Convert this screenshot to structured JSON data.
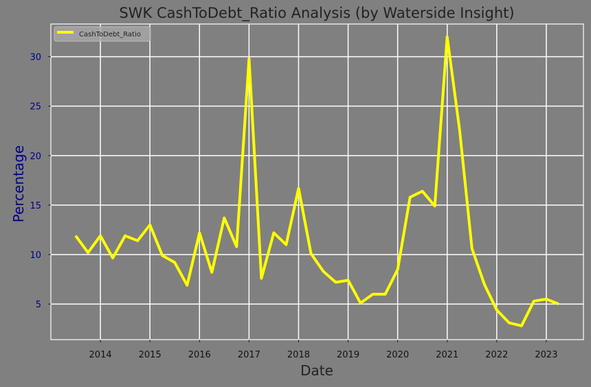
{
  "chart_data": {
    "type": "line",
    "title": "SWK CashToDebt_Ratio Analysis (by Waterside Insight)",
    "xlabel": "Date",
    "ylabel": "Percentage",
    "xlim": [
      2013.0,
      2023.75
    ],
    "ylim": [
      1.4,
      33.3
    ],
    "x_ticks": [
      2014,
      2015,
      2016,
      2017,
      2018,
      2019,
      2020,
      2021,
      2022,
      2023
    ],
    "y_ticks": [
      5,
      10,
      15,
      20,
      25,
      30
    ],
    "grid": true,
    "legend": {
      "placement": "top-left",
      "entries": [
        "CashToDebt_Ratio"
      ]
    },
    "colors": {
      "background": "#808080",
      "line": "#ffff00",
      "grid": "#ffffff",
      "ytick": "#00008b",
      "ylabel": "#00008b"
    },
    "series": [
      {
        "name": "CashToDebt_Ratio",
        "x": [
          2013.5,
          2013.75,
          2014,
          2014.25,
          2014.5,
          2014.75,
          2015,
          2015.25,
          2015.5,
          2015.75,
          2016,
          2016.25,
          2016.5,
          2016.75,
          2017,
          2017.25,
          2017.5,
          2017.75,
          2018,
          2018.25,
          2018.5,
          2018.75,
          2019,
          2019.25,
          2019.5,
          2019.75,
          2020,
          2020.25,
          2020.5,
          2020.75,
          2021,
          2021.25,
          2021.5,
          2021.75,
          2022,
          2022.25,
          2022.5,
          2022.75,
          2023,
          2023.25
        ],
        "values": [
          11.9,
          10.2,
          11.9,
          9.65,
          11.9,
          11.4,
          13.0,
          9.9,
          9.2,
          6.9,
          12.2,
          8.2,
          13.7,
          10.8,
          29.8,
          7.6,
          12.2,
          11.0,
          16.7,
          10.1,
          8.3,
          7.2,
          7.4,
          5.1,
          6.0,
          6.0,
          8.5,
          15.8,
          16.4,
          14.9,
          32.0,
          22.6,
          10.6,
          7.0,
          4.4,
          3.1,
          2.8,
          5.3,
          5.5,
          5.0
        ]
      }
    ]
  }
}
